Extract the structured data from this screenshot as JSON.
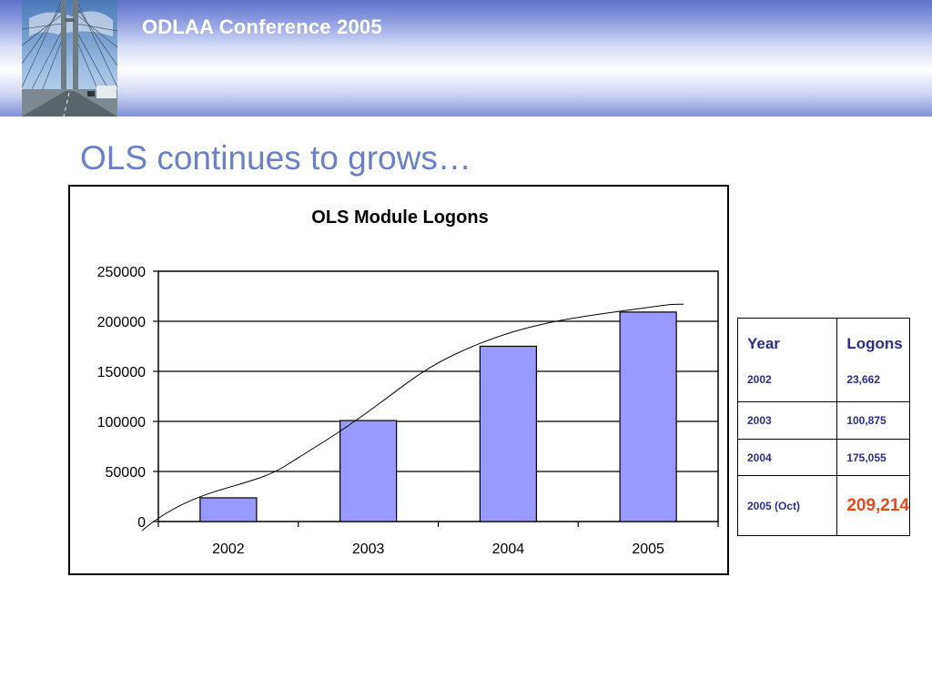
{
  "header": {
    "conference": "ODLAA Conference 2005"
  },
  "slide": {
    "title": "OLS continues to grows…"
  },
  "chart_data": {
    "type": "bar",
    "title": "OLS Module Logons",
    "categories": [
      "2002",
      "2003",
      "2004",
      "2005"
    ],
    "values": [
      23662,
      100875,
      175055,
      209214
    ],
    "ylim": [
      0,
      250000
    ],
    "yticks": [
      "0",
      "50000",
      "100000",
      "150000",
      "200000",
      "250000"
    ],
    "grid": true,
    "legend": "none",
    "trendline": true,
    "colors": {
      "bar": "#9a99ff",
      "bar_border": "#000000",
      "trend": "#000000"
    }
  },
  "table": {
    "headers": [
      "Year",
      "Logons"
    ],
    "rows": [
      {
        "year": "2002",
        "logons": "23,662"
      },
      {
        "year": "2003",
        "logons": "100,875"
      },
      {
        "year": "2004",
        "logons": "175,055"
      },
      {
        "year": "2005 (Oct)",
        "logons": "209,214"
      }
    ],
    "colors": {
      "text": "#2b2e8c",
      "highlight": "#e24a1f"
    }
  }
}
